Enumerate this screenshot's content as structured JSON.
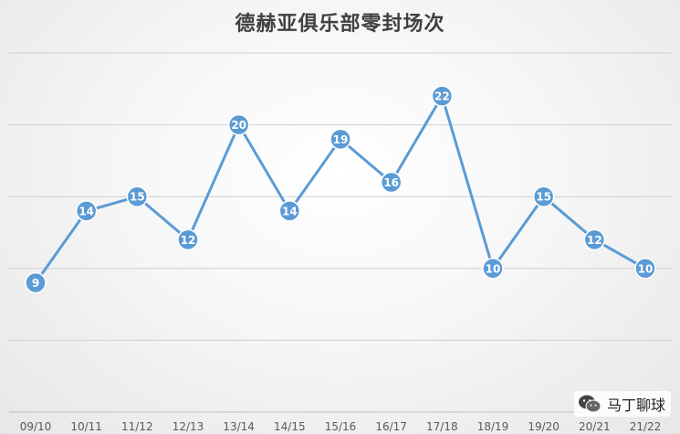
{
  "chart_data": {
    "type": "line",
    "title": "德赫亚俱乐部零封场次",
    "categories": [
      "09/10",
      "10/11",
      "11/12",
      "12/13",
      "13/14",
      "14/15",
      "15/16",
      "16/17",
      "17/18",
      "18/19",
      "19/20",
      "20/21",
      "21/22"
    ],
    "series": [
      {
        "values": [
          9,
          14,
          15,
          12,
          20,
          14,
          19,
          16,
          22,
          10,
          15,
          12,
          10
        ]
      }
    ],
    "xlabel": "",
    "ylabel": "",
    "ylim": [
      0,
      25
    ],
    "grid": true,
    "legend": "none",
    "data_labels": true,
    "line_color": "#5b9bd5",
    "marker_color": "#5b9bd5",
    "label_color": "#ffffff"
  },
  "watermark": {
    "text": "马丁聊球",
    "icon": "wechat-icon"
  }
}
